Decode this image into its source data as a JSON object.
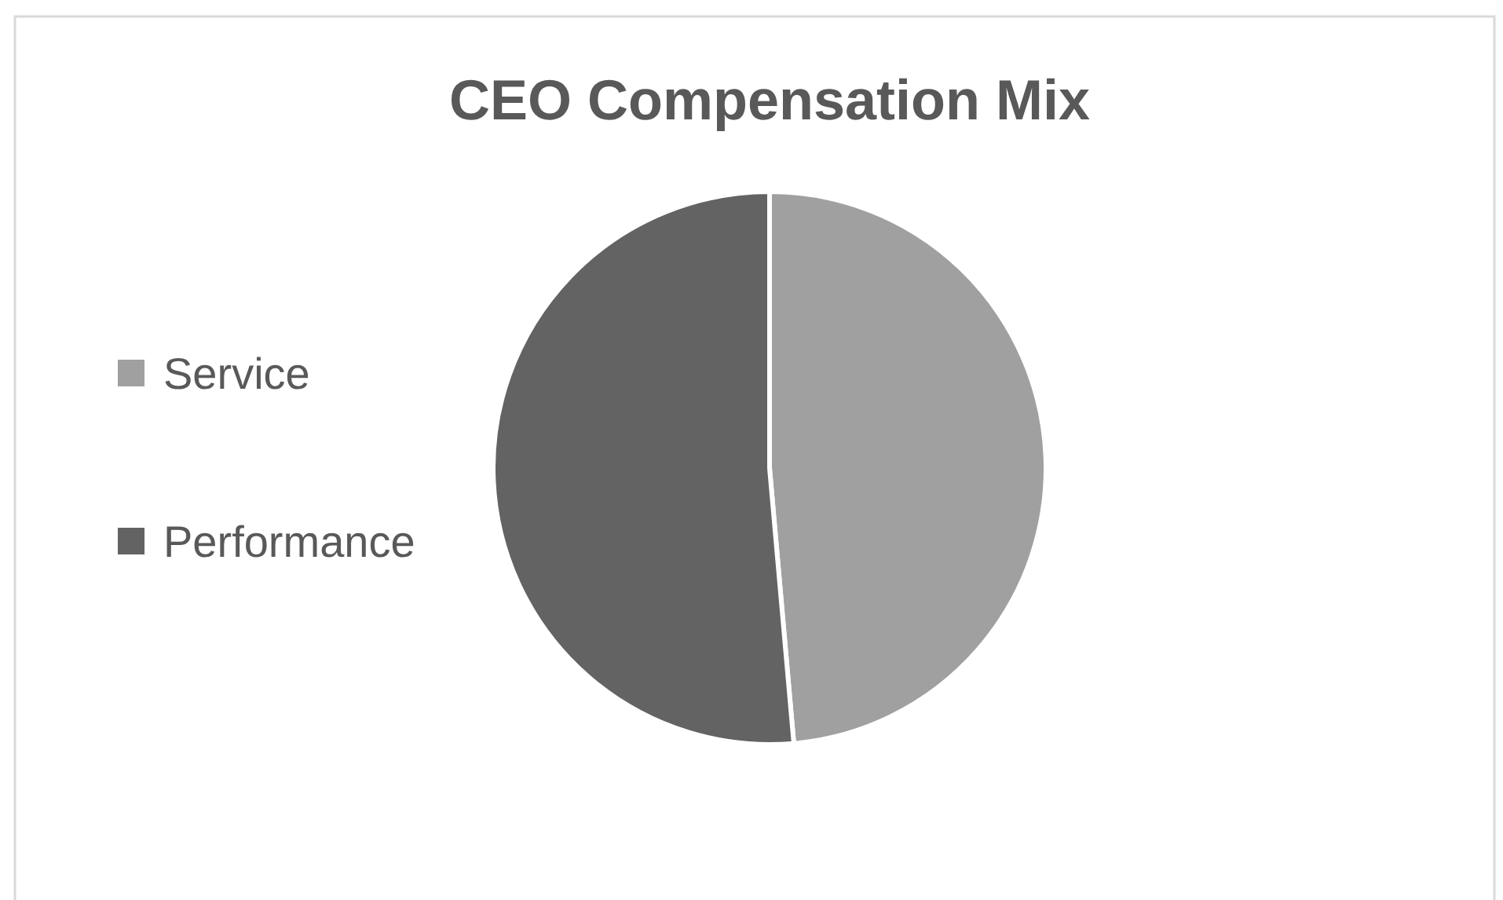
{
  "chart_data": {
    "type": "pie",
    "title": "CEO Compensation Mix",
    "categories": [
      "Service",
      "Performance"
    ],
    "values": [
      48.6,
      51.4
    ],
    "colors": [
      "#a0a0a0",
      "#636363"
    ],
    "legend": "left"
  }
}
